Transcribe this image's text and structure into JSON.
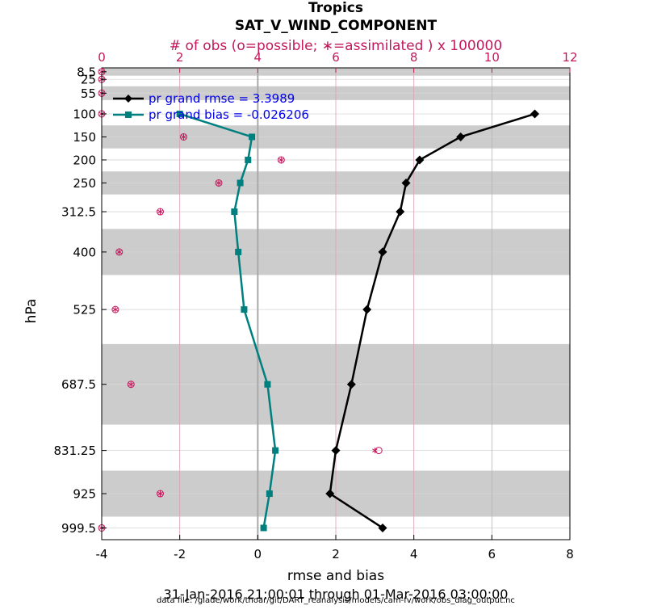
{
  "chart_data": {
    "type": "line",
    "title": "Tropics",
    "subtitle": "SAT_V_WIND_COMPONENT",
    "xlabel": "rmse and bias",
    "ylabel": "hPa",
    "xlim": [
      -4,
      8
    ],
    "x_ticks": [
      "-4",
      "-2",
      "0",
      "2",
      "4",
      "6",
      "8"
    ],
    "top_axis": {
      "label": "# of obs (o=possible; ∗=assimilated ) x 100000",
      "lim": [
        0,
        12
      ],
      "ticks": [
        "0",
        "2",
        "4",
        "6",
        "8",
        "10",
        "12"
      ]
    },
    "levels": [
      8.5,
      25,
      55,
      100,
      150,
      200,
      250,
      312.5,
      400,
      525,
      687.5,
      831.25,
      925,
      999.5
    ],
    "level_labels": [
      "8.5",
      "25",
      "55",
      "100",
      "150",
      "200",
      "250",
      "312.5",
      "400",
      "525",
      "687.5",
      "831.25",
      "925",
      "999.5"
    ],
    "level_scale": "linear",
    "ylim": [
      0,
      1025
    ],
    "y_reversed": true,
    "grid": true,
    "legend_position": "top-left",
    "series": [
      {
        "name": "pr grand rmse = 3.3989",
        "color": "#000000",
        "marker": "diamond",
        "levels": [
          100,
          150,
          200,
          250,
          312.5,
          400,
          525,
          687.5,
          831.25,
          925,
          999.5
        ],
        "values": [
          7.1,
          5.2,
          4.15,
          3.8,
          3.65,
          3.2,
          2.8,
          2.4,
          2.0,
          1.85,
          3.2
        ]
      },
      {
        "name": "pr grand bias = -0.026206",
        "color": "#007f7f",
        "marker": "square",
        "levels": [
          100,
          150,
          200,
          250,
          312.5,
          400,
          525,
          687.5,
          831.25,
          925,
          999.5
        ],
        "values": [
          -2.0,
          -0.15,
          -0.25,
          -0.45,
          -0.6,
          -0.5,
          -0.35,
          0.25,
          0.45,
          0.3,
          0.15
        ]
      }
    ],
    "obs_counts": {
      "color": "#c2185b",
      "levels": [
        8.5,
        25,
        55,
        100,
        150,
        200,
        250,
        312.5,
        400,
        525,
        687.5,
        831.25,
        925,
        999.5
      ],
      "possible": [
        0.0,
        0.0,
        0.0,
        0.0,
        2.1,
        4.6,
        3.0,
        1.5,
        0.45,
        0.35,
        0.75,
        7.1,
        1.5,
        0.0
      ],
      "assimilated": [
        0.0,
        0.0,
        0.0,
        0.0,
        2.1,
        4.6,
        3.0,
        1.5,
        0.45,
        0.35,
        0.75,
        7.0,
        1.5,
        0.0
      ]
    },
    "bands": [
      [
        0,
        17
      ],
      [
        40,
        70
      ],
      [
        125,
        175
      ],
      [
        225,
        275
      ],
      [
        350,
        450
      ],
      [
        600,
        775
      ],
      [
        875,
        975
      ]
    ]
  },
  "footer": {
    "date_range": "31-Jan-2016 21:00:01 through 01-Mar-2016 03:00:00",
    "data_file": "data file: /glade/work/thoar/git/DART_reanalysis/models/cam-fv/work/obs_diag_output.nc"
  }
}
